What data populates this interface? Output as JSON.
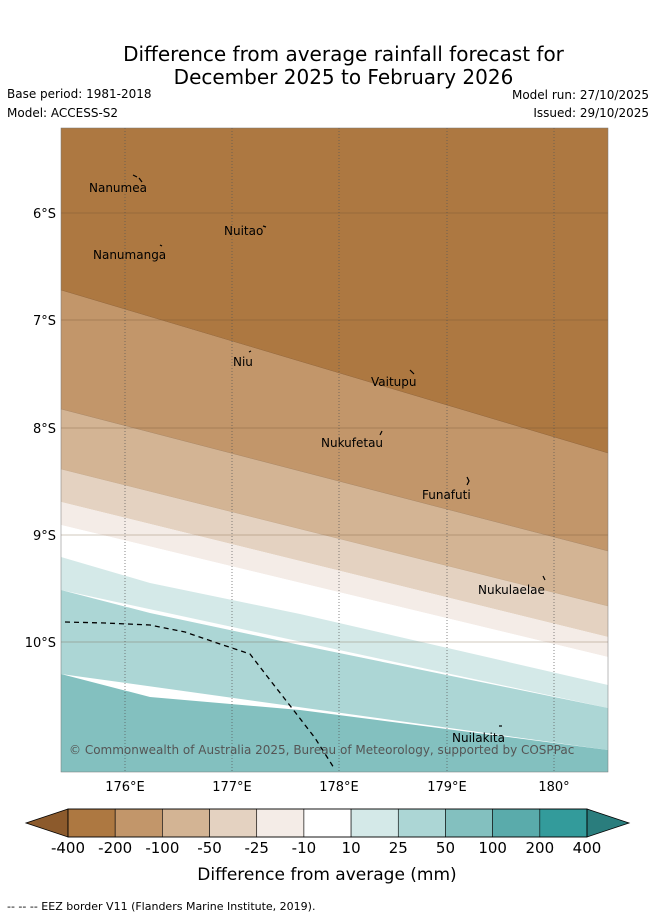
{
  "title": {
    "line1": "Difference from average rainfall forecast for",
    "line2": "December 2025 to February 2026"
  },
  "meta": {
    "base_period": "Base period: 1981-2018",
    "model": "Model: ACCESS-S2",
    "model_run": "Model run: 27/10/2025",
    "issued": "Issued: 29/10/2025"
  },
  "map": {
    "longitude_ticks": [
      "176°E",
      "177°E",
      "178°E",
      "179°E",
      "180°"
    ],
    "latitude_ticks": [
      "6°S",
      "7°S",
      "8°S",
      "9°S",
      "10°S"
    ],
    "islands": [
      {
        "name": "Nanumea"
      },
      {
        "name": "Nuitao"
      },
      {
        "name": "Nanumanga"
      },
      {
        "name": "Niu"
      },
      {
        "name": "Vaitupu"
      },
      {
        "name": "Nukufetau"
      },
      {
        "name": "Funafuti"
      },
      {
        "name": "Nukulaelae"
      },
      {
        "name": "Nuilakita"
      }
    ],
    "copyright": "© Commonwealth of Australia 2025, Bureau of Meteorology, supported by COSPPac"
  },
  "colorbar": {
    "labels": [
      "-400",
      "-200",
      "-100",
      "-50",
      "-25",
      "-10",
      "10",
      "25",
      "50",
      "100",
      "200",
      "400"
    ],
    "colors": [
      "#8c5a2c",
      "#ad7841",
      "#c2966a",
      "#d3b494",
      "#e4d2c1",
      "#f4ece7",
      "#ffffff",
      "#d4e9e8",
      "#acd6d5",
      "#83c0bf",
      "#5aabab",
      "#339b9b",
      "#2a7d7d"
    ],
    "title": "Difference from average (mm)"
  },
  "footnote": "--  --  -- EEZ border V11 (Flanders Marine Institute, 2019)."
}
